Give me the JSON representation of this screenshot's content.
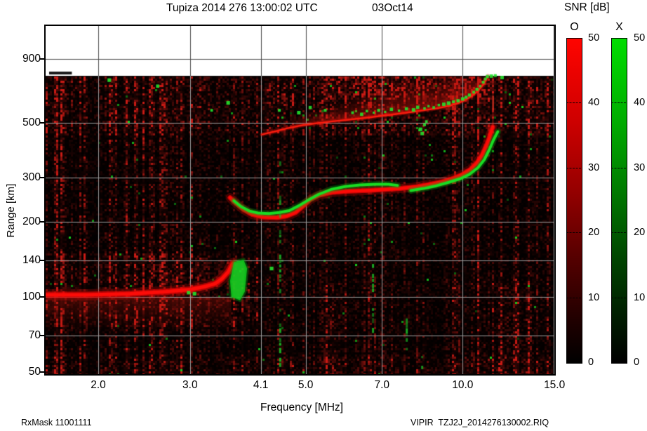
{
  "header": {
    "title": "Tupiza 2014 276 13:00:02 UTC",
    "date": "03Oct14"
  },
  "footer": {
    "left": "RxMask 11001111",
    "right": "VIPIR  TZJ2J_2014276130002.RIQ"
  },
  "colorbar": {
    "title": "SNR [dB]",
    "o_label": "O",
    "x_label": "X",
    "tick_labels": [
      "50",
      "40",
      "30",
      "20",
      "10",
      "0"
    ],
    "o_top_color": "#ff0400",
    "x_top_color": "#00dd00"
  },
  "chart_data": {
    "type": "heatmap",
    "subtype": "ionogram",
    "title": "Tupiza 2014 276 13:00:02 UTC",
    "date_label": "03Oct14",
    "station": "Tupiza",
    "x_axis": {
      "label": "Frequency [MHz]",
      "scale": "log",
      "ticks": [
        2.0,
        3.0,
        4.1,
        5.0,
        7.0,
        10.0,
        15.0
      ],
      "tick_labels": [
        "2.0",
        "3.0",
        "4.1",
        "5.0",
        "7.0",
        "10.0",
        "15.0"
      ],
      "range": [
        1.59,
        15.0
      ]
    },
    "y_axis": {
      "label": "Range [km]",
      "scale": "log",
      "ticks": [
        900,
        500,
        300,
        200,
        140,
        100,
        70,
        50
      ],
      "tick_labels": [
        "900",
        "500",
        "300",
        "200",
        "140",
        "100",
        "70",
        "50"
      ],
      "range": [
        50,
        1150
      ],
      "data_top_km": 770
    },
    "colorbar": {
      "title": "SNR [dB]",
      "range_db": [
        0,
        50
      ],
      "ticks": [
        50,
        40,
        30,
        20,
        10,
        0
      ],
      "modes": [
        {
          "label": "O",
          "color": "#ff0400"
        },
        {
          "label": "X",
          "color": "#00dd00"
        }
      ]
    },
    "background": "#000000",
    "grid": true,
    "traces": {
      "e_region_o": {
        "mode": "O",
        "points": [
          [
            1.59,
            102
          ],
          [
            1.9,
            102
          ],
          [
            2.3,
            103
          ],
          [
            2.7,
            105
          ],
          [
            3.0,
            107
          ],
          [
            3.2,
            110
          ],
          [
            3.35,
            113
          ],
          [
            3.45,
            118
          ],
          [
            3.55,
            126
          ],
          [
            3.62,
            136
          ]
        ]
      },
      "e_region_x_patch": {
        "mode": "X",
        "polygon": [
          [
            3.6,
            100
          ],
          [
            3.74,
            97
          ],
          [
            3.82,
            105
          ],
          [
            3.86,
            130
          ],
          [
            3.8,
            141
          ],
          [
            3.64,
            138
          ],
          [
            3.58,
            116
          ]
        ]
      },
      "f_region_o": {
        "mode": "O",
        "points": [
          [
            3.58,
            250
          ],
          [
            3.68,
            237
          ],
          [
            3.8,
            224
          ],
          [
            3.95,
            214
          ],
          [
            4.15,
            209
          ],
          [
            4.4,
            208
          ],
          [
            4.6,
            211
          ],
          [
            4.78,
            218
          ],
          [
            4.95,
            232
          ],
          [
            5.1,
            246
          ],
          [
            5.3,
            256
          ],
          [
            5.6,
            262
          ],
          [
            6.0,
            265
          ],
          [
            6.5,
            267
          ],
          [
            7.0,
            269
          ],
          [
            7.6,
            272
          ],
          [
            8.1,
            276
          ],
          [
            8.6,
            282
          ],
          [
            9.1,
            289
          ],
          [
            9.6,
            299
          ],
          [
            10.0,
            310
          ],
          [
            10.35,
            325
          ],
          [
            10.65,
            345
          ],
          [
            10.9,
            372
          ],
          [
            11.1,
            404
          ],
          [
            11.25,
            435
          ],
          [
            11.35,
            462
          ],
          [
            11.42,
            480
          ]
        ]
      },
      "f_region_x_low": {
        "mode": "X",
        "points": [
          [
            3.64,
            243
          ],
          [
            3.76,
            230
          ],
          [
            3.9,
            221
          ],
          [
            4.05,
            217
          ],
          [
            4.25,
            216
          ],
          [
            4.45,
            218
          ],
          [
            4.65,
            222
          ],
          [
            4.85,
            232
          ],
          [
            5.05,
            244
          ],
          [
            5.3,
            258
          ],
          [
            5.6,
            270
          ],
          [
            5.95,
            277
          ],
          [
            6.35,
            281
          ],
          [
            6.8,
            283
          ],
          [
            7.2,
            283
          ],
          [
            7.5,
            280
          ]
        ]
      },
      "f_region_x_high": {
        "mode": "X",
        "points": [
          [
            7.95,
            267
          ],
          [
            8.4,
            272
          ],
          [
            8.9,
            279
          ],
          [
            9.4,
            288
          ],
          [
            9.9,
            298
          ],
          [
            10.3,
            310
          ],
          [
            10.7,
            330
          ],
          [
            11.0,
            355
          ],
          [
            11.25,
            390
          ],
          [
            11.45,
            425
          ],
          [
            11.6,
            448
          ],
          [
            11.68,
            460
          ]
        ]
      },
      "second_hop_o": {
        "mode": "O",
        "points": [
          [
            4.12,
            448
          ],
          [
            4.35,
            460
          ],
          [
            4.6,
            474
          ],
          [
            4.9,
            487
          ],
          [
            5.2,
            496
          ],
          [
            5.6,
            505
          ],
          [
            6.0,
            513
          ],
          [
            6.5,
            522
          ],
          [
            7.0,
            532
          ],
          [
            7.5,
            542
          ],
          [
            8.0,
            552
          ],
          [
            8.5,
            562
          ],
          [
            9.0,
            572
          ],
          [
            9.4,
            583
          ],
          [
            9.8,
            598
          ],
          [
            10.1,
            615
          ],
          [
            10.4,
            638
          ],
          [
            10.7,
            670
          ],
          [
            10.95,
            710
          ],
          [
            11.1,
            745
          ],
          [
            11.18,
            768
          ]
        ],
        "fuzz_above": true
      }
    },
    "x_mode_specks": [
      [
        6.15,
        548
      ],
      [
        6.4,
        540
      ],
      [
        6.55,
        556
      ],
      [
        6.75,
        548
      ],
      [
        6.9,
        560
      ],
      [
        7.1,
        552
      ],
      [
        7.3,
        565
      ],
      [
        7.55,
        558
      ],
      [
        7.8,
        568
      ],
      [
        8.05,
        562
      ],
      [
        8.2,
        576
      ],
      [
        8.45,
        570
      ],
      [
        8.6,
        582
      ],
      [
        8.8,
        575
      ],
      [
        9.0,
        588
      ],
      [
        9.2,
        592
      ],
      [
        9.4,
        598
      ],
      [
        9.6,
        606
      ],
      [
        9.8,
        612
      ],
      [
        10.0,
        622
      ],
      [
        10.15,
        632
      ],
      [
        10.3,
        645
      ],
      [
        10.5,
        662
      ],
      [
        10.65,
        680
      ],
      [
        10.8,
        700
      ],
      [
        10.95,
        726
      ],
      [
        11.05,
        748
      ],
      [
        11.15,
        765
      ],
      [
        5.1,
        575
      ],
      [
        5.45,
        560
      ],
      [
        4.85,
        548
      ],
      [
        11.35,
        768
      ],
      [
        11.55,
        772
      ],
      [
        11.9,
        758
      ],
      [
        2.98,
        104
      ],
      [
        3.06,
        103
      ],
      [
        2.1,
        740
      ],
      [
        2.6,
        700
      ],
      [
        3.3,
        560
      ],
      [
        3.55,
        600
      ],
      [
        4.3,
        130
      ],
      [
        4.45,
        560
      ],
      [
        8.3,
        470
      ],
      [
        8.36,
        452
      ],
      [
        8.45,
        490
      ],
      [
        8.52,
        505
      ]
    ],
    "interference_columns_x_mode": [
      {
        "f": 4.46,
        "km": [
          48,
          350
        ]
      },
      {
        "f": 6.72,
        "km": [
          60,
          170
        ]
      },
      {
        "f": 7.8,
        "km": [
          58,
          82
        ]
      },
      {
        "f": 8.35,
        "km": [
          48,
          58
        ]
      }
    ],
    "vertical_echo_line_o": {
      "f": 11.42,
      "km": [
        480,
        768
      ]
    },
    "artifact_dash": {
      "f_range": [
        1.61,
        1.78
      ],
      "km": 790
    }
  }
}
